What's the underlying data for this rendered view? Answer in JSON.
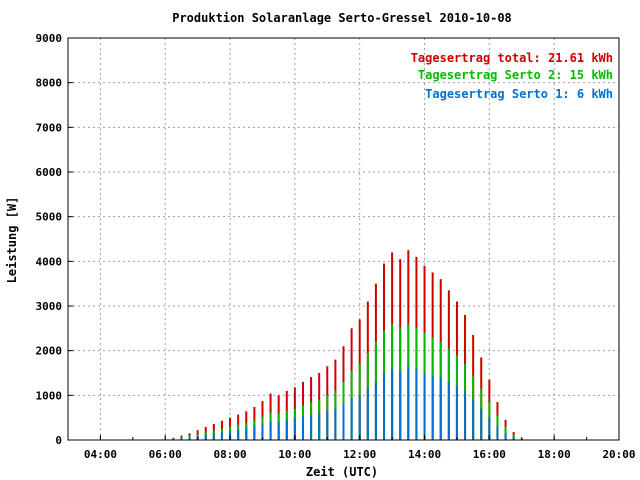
{
  "chart_data": {
    "type": "bar",
    "stacked": true,
    "title": "Produktion Solaranlage Serto-Gressel 2010-10-08",
    "xlabel": "Zeit (UTC)",
    "ylabel": "Leistung [W]",
    "xlim": [
      "03:00",
      "20:00"
    ],
    "ylim": [
      0,
      9000
    ],
    "x_ticks": [
      "04:00",
      "06:00",
      "08:00",
      "10:00",
      "12:00",
      "14:00",
      "16:00",
      "18:00",
      "20:00"
    ],
    "y_ticks": [
      "0",
      "1000",
      "2000",
      "3000",
      "4000",
      "5000",
      "6000",
      "7000",
      "8000",
      "9000"
    ],
    "grid": true,
    "legend_position": "top-right",
    "legend": [
      {
        "text": "Tagesertrag total: 21.61 kWh",
        "color": "#cc0000"
      },
      {
        "text": "Tagesertrag Serto 2: 15 kWh",
        "color": "#00bb00"
      },
      {
        "text": "Tagesertrag Serto 1: 6 kWh",
        "color": "#0070d0"
      }
    ],
    "colors": {
      "total": "#cc0000",
      "serto2": "#00bb00",
      "serto1": "#0070d0"
    },
    "x": [
      "06:15",
      "06:30",
      "06:45",
      "07:00",
      "07:15",
      "07:30",
      "07:45",
      "08:00",
      "08:15",
      "08:30",
      "08:45",
      "09:00",
      "09:15",
      "09:30",
      "09:45",
      "10:00",
      "10:15",
      "10:30",
      "10:45",
      "11:00",
      "11:15",
      "11:30",
      "11:45",
      "12:00",
      "12:15",
      "12:30",
      "12:45",
      "13:00",
      "13:15",
      "13:30",
      "13:45",
      "14:00",
      "14:15",
      "14:30",
      "14:45",
      "15:00",
      "15:15",
      "15:30",
      "15:45",
      "16:00",
      "16:15",
      "16:30",
      "16:45",
      "17:00"
    ],
    "series": [
      {
        "name": "Tagesertrag Serto 1: 6 kWh",
        "values": [
          20,
          40,
          60,
          90,
          120,
          150,
          180,
          200,
          230,
          260,
          300,
          350,
          420,
          400,
          450,
          480,
          520,
          560,
          600,
          650,
          700,
          800,
          950,
          1000,
          1150,
          1300,
          1500,
          1600,
          1550,
          1650,
          1600,
          1500,
          1450,
          1400,
          1300,
          1200,
          1100,
          900,
          700,
          500,
          300,
          150,
          60,
          10
        ]
      },
      {
        "name": "Tagesertrag Serto 2: 15 kWh",
        "values": [
          30,
          60,
          90,
          130,
          170,
          210,
          250,
          300,
          340,
          380,
          440,
          520,
          620,
          600,
          650,
          700,
          780,
          850,
          900,
          1000,
          1100,
          1300,
          1550,
          1700,
          1950,
          2200,
          2450,
          2600,
          2500,
          2600,
          2500,
          2400,
          2300,
          2200,
          2050,
          1900,
          1700,
          1450,
          1150,
          850,
          550,
          300,
          120,
          20
        ]
      },
      {
        "name": "Tagesertrag total: 21.61 kWh",
        "values": [
          50,
          100,
          150,
          220,
          290,
          360,
          430,
          500,
          570,
          640,
          740,
          870,
          1040,
          1000,
          1100,
          1180,
          1300,
          1410,
          1500,
          1650,
          1800,
          2100,
          2500,
          2700,
          3100,
          3500,
          3950,
          4200,
          4050,
          4250,
          4100,
          3900,
          3750,
          3600,
          3350,
          3100,
          2800,
          2350,
          1850,
          1350,
          850,
          450,
          180,
          30
        ]
      }
    ]
  }
}
